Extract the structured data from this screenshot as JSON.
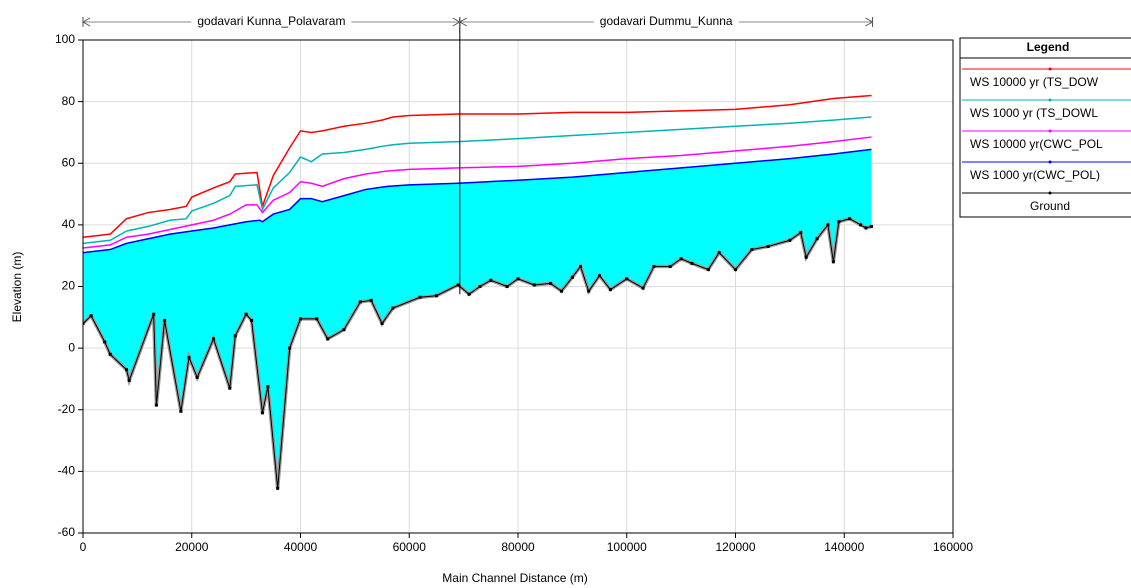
{
  "chart_data": {
    "type": "line",
    "xlabel": "Main Channel Distance  (m)",
    "ylabel": "Elevation (m)",
    "legend_title": "Legend",
    "legend": "outside-right",
    "grid": true,
    "xlim": [
      0,
      160000
    ],
    "ylim": [
      -60,
      100
    ],
    "xticks": [
      0,
      20000,
      40000,
      60000,
      80000,
      100000,
      120000,
      140000,
      160000
    ],
    "yticks": [
      -60,
      -40,
      -20,
      0,
      20,
      40,
      60,
      80,
      100
    ],
    "fill_series": 3,
    "fill_color": "#00ffff",
    "reaches": [
      {
        "name": "godavari Kunna_Polavaram",
        "start": 0,
        "end": 69300
      },
      {
        "name": "godavari Dummu_Kunna",
        "start": 69300,
        "end": 145200
      }
    ],
    "series": [
      {
        "name": "WS  10000 yr (TS_DOW",
        "color": "#ff0000",
        "x": [
          0,
          5000,
          8000,
          12000,
          16000,
          19000,
          20000,
          24000,
          27000,
          28000,
          32000,
          33000,
          35000,
          38000,
          40000,
          42000,
          44000,
          48000,
          52000,
          55000,
          57000,
          60000,
          69000,
          80000,
          90000,
          100000,
          110000,
          120000,
          130000,
          138000,
          145000
        ],
        "values": [
          36,
          37,
          42,
          44,
          45,
          46,
          49,
          52,
          54,
          56.5,
          57,
          46,
          56,
          65,
          70.5,
          70,
          70.5,
          72,
          73,
          74,
          75,
          75.5,
          76,
          76,
          76.5,
          76.5,
          77,
          77.5,
          79,
          81,
          82
        ]
      },
      {
        "name": "WS  1000 yr (TS_DOWL",
        "color": "#00b4b4",
        "x": [
          0,
          5000,
          8000,
          12000,
          16000,
          19000,
          20000,
          24000,
          27000,
          28000,
          32000,
          33000,
          35000,
          38000,
          40000,
          42000,
          44000,
          48000,
          52000,
          55000,
          57000,
          60000,
          69000,
          80000,
          90000,
          100000,
          110000,
          120000,
          130000,
          138000,
          145000
        ],
        "values": [
          34,
          35,
          38,
          39.5,
          41.5,
          42,
          44.5,
          47,
          49.5,
          52.5,
          53,
          45,
          52,
          57,
          62,
          60.5,
          63,
          63.5,
          64.5,
          65.5,
          66,
          66.5,
          67,
          68,
          69,
          70,
          71,
          72,
          73,
          74,
          75
        ]
      },
      {
        "name": "WS  10000 yr(CWC_POL",
        "color": "#ff00ff",
        "x": [
          0,
          5000,
          8000,
          12000,
          16000,
          20000,
          24000,
          27000,
          30000,
          32000,
          33000,
          35000,
          38000,
          40000,
          42000,
          44000,
          48000,
          52000,
          56000,
          60000,
          69000,
          80000,
          90000,
          100000,
          110000,
          120000,
          130000,
          138000,
          145000
        ],
        "values": [
          32.5,
          33.5,
          36,
          37,
          38.5,
          40,
          41.5,
          43.5,
          46.5,
          46.5,
          44,
          48,
          50.5,
          54,
          53.5,
          52.5,
          55,
          56.5,
          57.5,
          58,
          58.5,
          59,
          60,
          61.5,
          62.5,
          64,
          65.5,
          67,
          68.5
        ]
      },
      {
        "name": "WS  1000 yr(CWC_POL)",
        "color": "#0000ff",
        "x": [
          0,
          5000,
          8000,
          12000,
          16000,
          20000,
          24000,
          27000,
          30000,
          32500,
          33000,
          35000,
          38000,
          40000,
          42000,
          44000,
          48000,
          52000,
          56000,
          60000,
          69000,
          80000,
          90000,
          100000,
          110000,
          120000,
          130000,
          138000,
          145000
        ],
        "values": [
          31,
          32,
          34,
          35.5,
          37,
          38,
          39,
          40,
          41,
          41.5,
          41,
          43.5,
          45,
          48.5,
          48.5,
          47.5,
          49.5,
          51.5,
          52.5,
          53,
          53.5,
          54.5,
          55.5,
          57,
          58.5,
          60,
          61.5,
          63,
          64.5
        ]
      },
      {
        "name": "Ground",
        "color": "#000000",
        "x": [
          0,
          1500,
          4000,
          5000,
          8000,
          8500,
          13000,
          13500,
          15000,
          18000,
          19500,
          21000,
          24000,
          27000,
          28000,
          30000,
          31000,
          33000,
          34000,
          35800,
          38000,
          40000,
          43000,
          45000,
          48000,
          51000,
          53000,
          55000,
          57000,
          62000,
          65000,
          69000,
          71000,
          73000,
          75000,
          78000,
          80000,
          83000,
          86000,
          88000,
          90000,
          91500,
          93000,
          95000,
          97000,
          100000,
          103000,
          105000,
          108000,
          110000,
          112000,
          115000,
          117000,
          120000,
          123000,
          126000,
          130000,
          132000,
          133000,
          135000,
          137000,
          138000,
          139000,
          141000,
          143000,
          144000,
          145000
        ],
        "values": [
          8,
          10.5,
          2,
          -2,
          -7,
          -10.5,
          11,
          -18.5,
          9,
          -20.5,
          -3,
          -9.5,
          3,
          -13,
          4,
          11,
          9,
          -21,
          -12.5,
          -45.5,
          0,
          9.5,
          9.5,
          3,
          6,
          15,
          15.5,
          8,
          13,
          16.5,
          17,
          20.5,
          17.5,
          20,
          22,
          20,
          22.5,
          20.5,
          21,
          18.5,
          23,
          26.5,
          18.5,
          23.5,
          19,
          22.5,
          19.5,
          26.5,
          26.5,
          29,
          27.5,
          25.5,
          31,
          25.5,
          32,
          33,
          35,
          37.5,
          29.5,
          35.5,
          40,
          28,
          41,
          42,
          40,
          39,
          39.5
        ]
      }
    ]
  }
}
